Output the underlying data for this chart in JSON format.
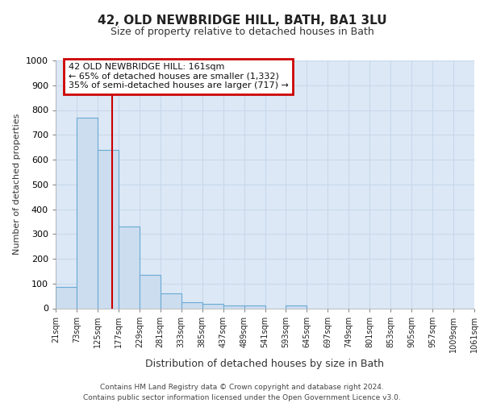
{
  "title": "42, OLD NEWBRIDGE HILL, BATH, BA1 3LU",
  "subtitle": "Size of property relative to detached houses in Bath",
  "xlabel": "Distribution of detached houses by size in Bath",
  "ylabel": "Number of detached properties",
  "categories": [
    "21sqm",
    "73sqm",
    "125sqm",
    "177sqm",
    "229sqm",
    "281sqm",
    "333sqm",
    "385sqm",
    "437sqm",
    "489sqm",
    "541sqm",
    "593sqm",
    "645sqm",
    "697sqm",
    "749sqm",
    "801sqm",
    "853sqm",
    "905sqm",
    "957sqm",
    "1009sqm",
    "1061sqm"
  ],
  "bar_heights": [
    85,
    770,
    640,
    330,
    135,
    60,
    25,
    18,
    10,
    10,
    0,
    10,
    0,
    0,
    0,
    0,
    0,
    0,
    0,
    0
  ],
  "bar_color": "#ccddef",
  "bar_edge_color": "#6aaad4",
  "annotation_text": "42 OLD NEWBRIDGE HILL: 161sqm\n← 65% of detached houses are smaller (1,332)\n35% of semi-detached houses are larger (717) →",
  "annotation_box_color": "#ffffff",
  "annotation_box_edge_color": "#cc0000",
  "ylim": [
    0,
    1000
  ],
  "yticks": [
    0,
    100,
    200,
    300,
    400,
    500,
    600,
    700,
    800,
    900,
    1000
  ],
  "grid_color": "#c8d8ec",
  "background_color": "#dce8f5",
  "fig_background": "#ffffff",
  "footer_line1": "Contains HM Land Registry data © Crown copyright and database right 2024.",
  "footer_line2": "Contains public sector information licensed under the Open Government Licence v3.0."
}
